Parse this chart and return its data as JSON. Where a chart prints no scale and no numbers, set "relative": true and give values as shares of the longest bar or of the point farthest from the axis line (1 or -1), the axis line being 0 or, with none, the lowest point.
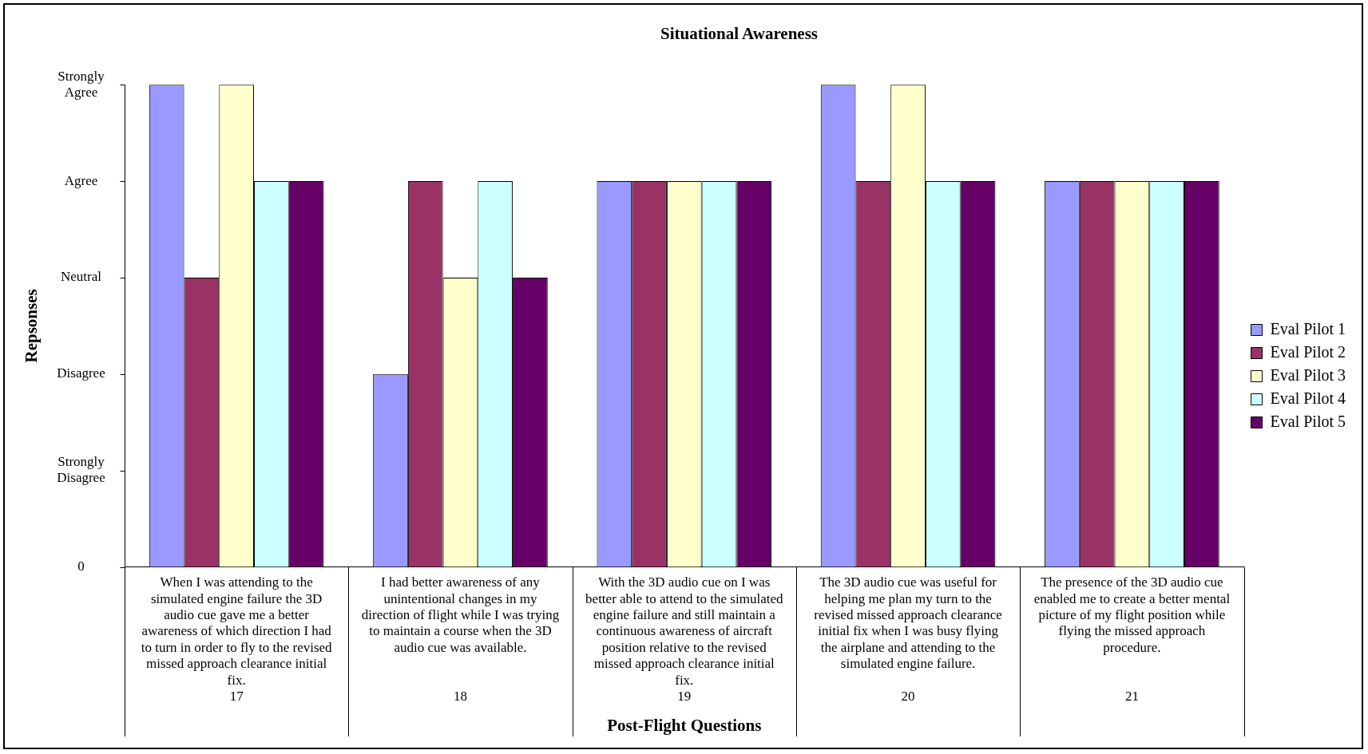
{
  "chart_data": {
    "type": "bar",
    "title": "Situational Awareness",
    "xlabel": "Post-Flight Questions",
    "ylabel": "Repsonses",
    "relative": true,
    "categories": [
      "When I was attending to the simulated engine failure the 3D audio cue gave me a better awareness of which direction I had to turn in order to fly to the revised missed approach clearance initial fix.",
      "I had better awareness of any unintentional changes in my direction of flight while I was trying to maintain a course when the 3D audio cue was available.",
      "With the 3D audio cue on I was better able to attend to the simulated engine failure and still maintain a continuous awareness of aircraft position relative to the revised missed approach clearance initial fix.",
      "The 3D audio cue was useful for helping me plan my turn to the revised missed approach clearance initial fix when I was busy flying the airplane and attending to the simulated engine failure.",
      "The presence of the 3D audio cue enabled me to create a better mental picture of my flight position while flying the missed approach procedure."
    ],
    "annotations": [
      "17",
      "18",
      "19",
      "20",
      "21",
      "0",
      "Strongly Disagree",
      "Disagree",
      "Neutral",
      "Agree",
      "Strongly Agree"
    ],
    "series": [
      {
        "name": "Eval Pilot 1",
        "color": "#9999ff",
        "values": [
          1,
          0.4,
          0.8,
          1,
          0.8
        ]
      },
      {
        "name": "Eval Pilot 2",
        "color": "#993366",
        "values": [
          0.6,
          0.8,
          0.8,
          0.8,
          0.8
        ]
      },
      {
        "name": "Eval Pilot 3",
        "color": "#ffffcc",
        "values": [
          1,
          0.6,
          0.8,
          1,
          0.8
        ]
      },
      {
        "name": "Eval Pilot 4",
        "color": "#ccffff",
        "values": [
          0.8,
          0.8,
          0.8,
          0.8,
          0.8
        ]
      },
      {
        "name": "Eval Pilot 5",
        "color": "#660066",
        "values": [
          0.8,
          0.6,
          0.8,
          0.8,
          0.8
        ]
      }
    ],
    "grid": false,
    "legend": "right"
  }
}
